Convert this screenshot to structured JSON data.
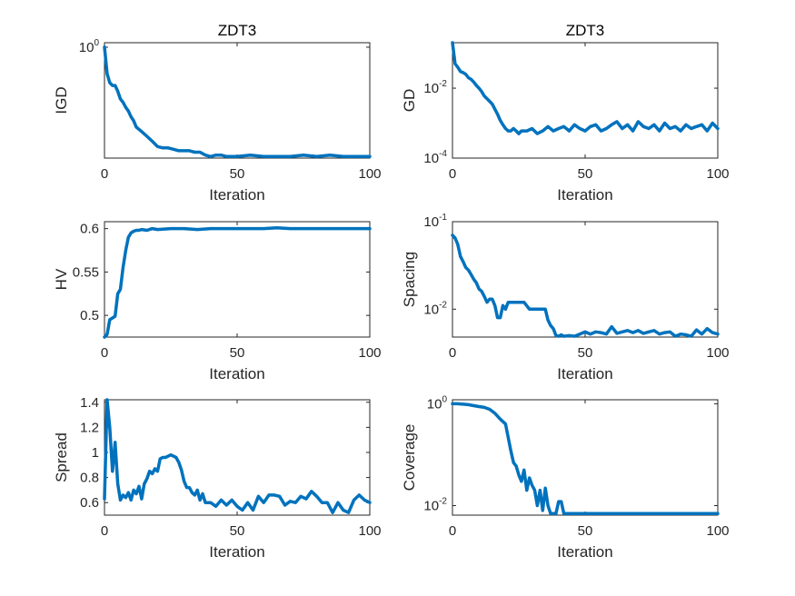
{
  "colors": {
    "series": "#0072BD"
  },
  "chart_data": [
    {
      "type": "line",
      "title": "ZDT3",
      "xlabel": "Iteration",
      "ylabel": "IGD",
      "scale": "log",
      "xlim": [
        0,
        100
      ],
      "ylim": [
        0.3,
        1.05
      ],
      "xticks": [
        0,
        50,
        100
      ],
      "yticks": [
        {
          "value": 1,
          "base": "10",
          "exp": "0"
        }
      ],
      "x": [
        0,
        1,
        2,
        3,
        4,
        5,
        6,
        7,
        8,
        9,
        10,
        11,
        12,
        14,
        16,
        18,
        20,
        22,
        24,
        26,
        28,
        30,
        32,
        34,
        36,
        38,
        40,
        42,
        44,
        46,
        48,
        50,
        55,
        60,
        65,
        70,
        75,
        80,
        85,
        90,
        95,
        100
      ],
      "y": [
        1.0,
        0.75,
        0.68,
        0.66,
        0.66,
        0.62,
        0.57,
        0.55,
        0.52,
        0.5,
        0.47,
        0.45,
        0.42,
        0.4,
        0.38,
        0.36,
        0.34,
        0.335,
        0.335,
        0.33,
        0.325,
        0.325,
        0.325,
        0.32,
        0.32,
        0.31,
        0.305,
        0.31,
        0.31,
        0.305,
        0.305,
        0.305,
        0.31,
        0.305,
        0.305,
        0.305,
        0.31,
        0.305,
        0.31,
        0.305,
        0.305,
        0.305
      ]
    },
    {
      "type": "line",
      "title": "ZDT3",
      "xlabel": "Iteration",
      "ylabel": "GD",
      "scale": "log",
      "xlim": [
        0,
        100
      ],
      "ylim": [
        0.0001,
        0.2
      ],
      "xticks": [
        0,
        50,
        100
      ],
      "yticks": [
        {
          "value": 0.01,
          "base": "10",
          "exp": "-2"
        },
        {
          "value": 0.0001,
          "base": "10",
          "exp": "-4"
        }
      ],
      "x": [
        0,
        1,
        2,
        3,
        4,
        5,
        6,
        7,
        8,
        9,
        10,
        11,
        12,
        13,
        14,
        15,
        16,
        17,
        18,
        19,
        20,
        21,
        22,
        23,
        24,
        25,
        26,
        28,
        30,
        32,
        34,
        36,
        38,
        40,
        42,
        44,
        46,
        48,
        50,
        52,
        54,
        56,
        58,
        60,
        62,
        64,
        66,
        68,
        70,
        72,
        74,
        76,
        78,
        80,
        82,
        84,
        86,
        88,
        90,
        92,
        94,
        96,
        98,
        100
      ],
      "y": [
        0.2,
        0.05,
        0.04,
        0.03,
        0.028,
        0.025,
        0.02,
        0.018,
        0.015,
        0.012,
        0.01,
        0.008,
        0.006,
        0.005,
        0.0042,
        0.0035,
        0.0025,
        0.0018,
        0.0012,
        0.0009,
        0.0007,
        0.0006,
        0.0006,
        0.0007,
        0.0006,
        0.0005,
        0.0006,
        0.0006,
        0.0007,
        0.0005,
        0.0006,
        0.0008,
        0.0006,
        0.0007,
        0.0008,
        0.0006,
        0.0009,
        0.0007,
        0.0006,
        0.0008,
        0.0009,
        0.0006,
        0.0007,
        0.0009,
        0.0011,
        0.0007,
        0.0009,
        0.0006,
        0.0011,
        0.0008,
        0.0007,
        0.0009,
        0.0006,
        0.001,
        0.0007,
        0.0008,
        0.0006,
        0.0009,
        0.0007,
        0.0008,
        0.0009,
        0.0006,
        0.001,
        0.0007
      ]
    },
    {
      "type": "line",
      "title": "",
      "xlabel": "Iteration",
      "ylabel": "HV",
      "scale": "linear",
      "xlim": [
        0,
        100
      ],
      "ylim": [
        0.475,
        0.608
      ],
      "xticks": [
        0,
        50,
        100
      ],
      "yticks": [
        {
          "label": "0.6",
          "value": 0.6
        },
        {
          "label": "0.55",
          "value": 0.55
        },
        {
          "label": "0.5",
          "value": 0.5
        }
      ],
      "x": [
        0,
        1,
        2,
        3,
        4,
        5,
        6,
        7,
        8,
        9,
        10,
        11,
        12,
        13,
        14,
        16,
        18,
        20,
        25,
        30,
        35,
        40,
        45,
        50,
        55,
        60,
        65,
        70,
        75,
        80,
        85,
        90,
        95,
        100
      ],
      "y": [
        0.475,
        0.478,
        0.495,
        0.497,
        0.499,
        0.525,
        0.53,
        0.555,
        0.575,
        0.59,
        0.595,
        0.597,
        0.598,
        0.598,
        0.599,
        0.598,
        0.6,
        0.599,
        0.6,
        0.6,
        0.599,
        0.6,
        0.6,
        0.6,
        0.6,
        0.6,
        0.601,
        0.6,
        0.6,
        0.6,
        0.6,
        0.6,
        0.6,
        0.6
      ]
    },
    {
      "type": "line",
      "title": "",
      "xlabel": "Iteration",
      "ylabel": "Spacing",
      "scale": "log",
      "xlim": [
        0,
        100
      ],
      "ylim": [
        0.0048,
        0.1
      ],
      "xticks": [
        0,
        50,
        100
      ],
      "yticks": [
        {
          "value": 0.1,
          "base": "10",
          "exp": "-1"
        },
        {
          "value": 0.01,
          "base": "10",
          "exp": "-2"
        }
      ],
      "x": [
        0,
        1,
        2,
        3,
        4,
        5,
        6,
        7,
        8,
        9,
        10,
        11,
        12,
        13,
        14,
        15,
        16,
        17,
        18,
        19,
        20,
        21,
        22,
        23,
        24,
        25,
        27,
        29,
        31,
        33,
        35,
        36,
        37,
        38,
        39,
        40,
        41,
        42,
        44,
        46,
        48,
        50,
        52,
        54,
        56,
        58,
        60,
        62,
        64,
        66,
        68,
        70,
        72,
        74,
        76,
        78,
        80,
        82,
        84,
        86,
        88,
        90,
        92,
        94,
        96,
        98,
        100
      ],
      "y": [
        0.07,
        0.065,
        0.055,
        0.04,
        0.035,
        0.03,
        0.028,
        0.025,
        0.022,
        0.02,
        0.017,
        0.016,
        0.014,
        0.012,
        0.013,
        0.013,
        0.011,
        0.008,
        0.008,
        0.011,
        0.01,
        0.012,
        0.012,
        0.012,
        0.012,
        0.012,
        0.012,
        0.01,
        0.01,
        0.01,
        0.01,
        0.0075,
        0.0065,
        0.006,
        0.005,
        0.0049,
        0.0051,
        0.0049,
        0.005,
        0.0049,
        0.0052,
        0.0055,
        0.0052,
        0.0055,
        0.0054,
        0.0052,
        0.0063,
        0.0053,
        0.0055,
        0.0057,
        0.0054,
        0.0057,
        0.0053,
        0.0055,
        0.0057,
        0.0052,
        0.0054,
        0.0055,
        0.0049,
        0.0052,
        0.0051,
        0.0049,
        0.0058,
        0.0052,
        0.006,
        0.0054,
        0.0052
      ]
    },
    {
      "type": "line",
      "title": "",
      "xlabel": "Iteration",
      "ylabel": "Spread",
      "scale": "linear",
      "xlim": [
        0,
        100
      ],
      "ylim": [
        0.5,
        1.42
      ],
      "xticks": [
        0,
        50,
        100
      ],
      "yticks": [
        {
          "label": "1.4",
          "value": 1.4
        },
        {
          "label": "1.2",
          "value": 1.2
        },
        {
          "label": "1",
          "value": 1.0
        },
        {
          "label": "0.8",
          "value": 0.8
        },
        {
          "label": "0.6",
          "value": 0.6
        }
      ],
      "x": [
        0,
        1,
        2,
        3,
        4,
        5,
        6,
        7,
        8,
        9,
        10,
        11,
        12,
        13,
        14,
        15,
        16,
        17,
        18,
        19,
        20,
        21,
        22,
        23,
        24,
        25,
        26,
        27,
        28,
        29,
        30,
        31,
        32,
        33,
        34,
        35,
        36,
        37,
        38,
        40,
        42,
        44,
        46,
        48,
        50,
        52,
        54,
        56,
        58,
        60,
        62,
        64,
        66,
        68,
        70,
        72,
        74,
        76,
        78,
        80,
        82,
        84,
        86,
        88,
        90,
        92,
        94,
        96,
        98,
        100
      ],
      "y": [
        0.63,
        1.42,
        1.2,
        0.85,
        1.08,
        0.75,
        0.62,
        0.66,
        0.64,
        0.68,
        0.62,
        0.7,
        0.67,
        0.73,
        0.63,
        0.75,
        0.79,
        0.85,
        0.83,
        0.87,
        0.85,
        0.95,
        0.96,
        0.96,
        0.97,
        0.98,
        0.97,
        0.96,
        0.92,
        0.86,
        0.77,
        0.72,
        0.72,
        0.68,
        0.66,
        0.7,
        0.62,
        0.67,
        0.6,
        0.6,
        0.57,
        0.62,
        0.58,
        0.62,
        0.57,
        0.54,
        0.6,
        0.54,
        0.65,
        0.6,
        0.66,
        0.66,
        0.65,
        0.58,
        0.61,
        0.6,
        0.65,
        0.63,
        0.69,
        0.65,
        0.6,
        0.6,
        0.52,
        0.6,
        0.54,
        0.52,
        0.62,
        0.66,
        0.62,
        0.6
      ]
    },
    {
      "type": "line",
      "title": "",
      "xlabel": "Iteration",
      "ylabel": "Coverage",
      "scale": "log",
      "xlim": [
        0,
        100
      ],
      "ylim": [
        0.0065,
        1.2
      ],
      "xticks": [
        0,
        50,
        100
      ],
      "yticks": [
        {
          "value": 1,
          "base": "10",
          "exp": "0"
        },
        {
          "value": 0.01,
          "base": "10",
          "exp": "-2"
        }
      ],
      "x": [
        0,
        2,
        4,
        6,
        8,
        10,
        12,
        14,
        16,
        18,
        20,
        21,
        22,
        23,
        24,
        25,
        26,
        27,
        28,
        29,
        30,
        31,
        32,
        33,
        34,
        35,
        36,
        37,
        38,
        39,
        40,
        41,
        42,
        43,
        44,
        46,
        48,
        50,
        52,
        54,
        56,
        58,
        60,
        62,
        64,
        66,
        68,
        70,
        72,
        74,
        76,
        78,
        80,
        82,
        84,
        86,
        88,
        90,
        92,
        94,
        96,
        98,
        100
      ],
      "y": [
        1.0,
        1.0,
        0.98,
        0.96,
        0.92,
        0.88,
        0.85,
        0.78,
        0.65,
        0.5,
        0.4,
        0.22,
        0.12,
        0.07,
        0.06,
        0.04,
        0.03,
        0.05,
        0.02,
        0.035,
        0.025,
        0.02,
        0.01,
        0.02,
        0.008,
        0.022,
        0.01,
        0.007,
        0.007,
        0.007,
        0.012,
        0.012,
        0.007,
        0.007,
        0.007,
        0.007,
        0.007,
        0.007,
        0.007,
        0.007,
        0.007,
        0.007,
        0.007,
        0.007,
        0.007,
        0.007,
        0.007,
        0.007,
        0.007,
        0.007,
        0.007,
        0.007,
        0.007,
        0.007,
        0.007,
        0.007,
        0.007,
        0.007,
        0.007,
        0.007,
        0.007,
        0.007,
        0.007
      ]
    }
  ]
}
